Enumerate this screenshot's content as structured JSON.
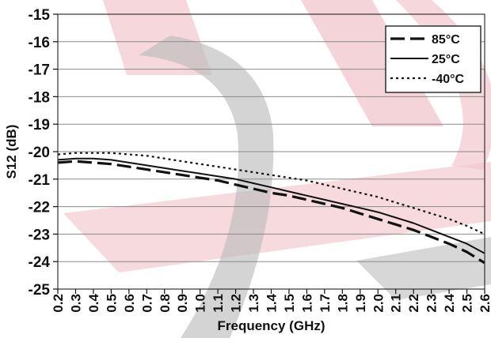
{
  "chart_data": {
    "type": "line",
    "title": "",
    "xlabel": "Frequency (GHz)",
    "ylabel": "S12 (dB)",
    "xlim": [
      0.2,
      2.6
    ],
    "ylim": [
      -25,
      -15
    ],
    "x_ticks": [
      0.2,
      0.3,
      0.4,
      0.5,
      0.6,
      0.7,
      0.8,
      0.9,
      1.0,
      1.1,
      1.2,
      1.3,
      1.4,
      1.5,
      1.6,
      1.7,
      1.8,
      1.9,
      2.0,
      2.1,
      2.2,
      2.3,
      2.4,
      2.5,
      2.6
    ],
    "x_tick_labels": [
      "0.2",
      "0.3",
      "0.4",
      "0.5",
      "0.6",
      "0.7",
      "0.8",
      "0.9",
      "1.0",
      "1.1",
      "1.2",
      "1.3",
      "1.4",
      "1.5",
      "1.6",
      "1.7",
      "1.8",
      "1.9",
      "2.0",
      "2.1",
      "2.2",
      "2.3",
      "2.4",
      "2.5",
      "2.6"
    ],
    "y_ticks": [
      -25,
      -24,
      -23,
      -22,
      -21,
      -20,
      -19,
      -18,
      -17,
      -16,
      -15
    ],
    "y_tick_labels": [
      "-25",
      "-24",
      "-23",
      "-22",
      "-21",
      "-20",
      "-19",
      "-18",
      "-17",
      "-16",
      "-15"
    ],
    "grid": "horizontal",
    "legend": {
      "position": "top-right",
      "entries": [
        "85°C",
        "25°C",
        "-40°C"
      ]
    },
    "x": [
      0.2,
      0.3,
      0.4,
      0.5,
      0.6,
      0.7,
      0.8,
      0.9,
      1.0,
      1.1,
      1.2,
      1.3,
      1.4,
      1.5,
      1.6,
      1.7,
      1.8,
      1.9,
      2.0,
      2.1,
      2.2,
      2.3,
      2.4,
      2.5,
      2.6
    ],
    "series": [
      {
        "name": "85°C",
        "style": "long-dash",
        "color": "#111111",
        "values": [
          -20.4,
          -20.35,
          -20.4,
          -20.45,
          -20.55,
          -20.65,
          -20.75,
          -20.85,
          -20.95,
          -21.05,
          -21.2,
          -21.35,
          -21.5,
          -21.6,
          -21.75,
          -21.9,
          -22.05,
          -22.25,
          -22.45,
          -22.65,
          -22.85,
          -23.1,
          -23.35,
          -23.65,
          -24.05
        ]
      },
      {
        "name": "25°C",
        "style": "solid",
        "color": "#111111",
        "values": [
          -20.3,
          -20.25,
          -20.25,
          -20.3,
          -20.4,
          -20.5,
          -20.6,
          -20.7,
          -20.8,
          -20.9,
          -21.0,
          -21.15,
          -21.3,
          -21.45,
          -21.6,
          -21.75,
          -21.9,
          -22.05,
          -22.2,
          -22.4,
          -22.6,
          -22.85,
          -23.1,
          -23.35,
          -23.7
        ]
      },
      {
        "name": "-40°C",
        "style": "dotted",
        "color": "#111111",
        "values": [
          -20.1,
          -20.05,
          -20.05,
          -20.05,
          -20.1,
          -20.15,
          -20.25,
          -20.35,
          -20.45,
          -20.55,
          -20.65,
          -20.75,
          -20.85,
          -20.95,
          -21.05,
          -21.2,
          -21.35,
          -21.5,
          -21.65,
          -21.85,
          -22.05,
          -22.25,
          -22.45,
          -22.7,
          -23.0
        ]
      }
    ]
  }
}
